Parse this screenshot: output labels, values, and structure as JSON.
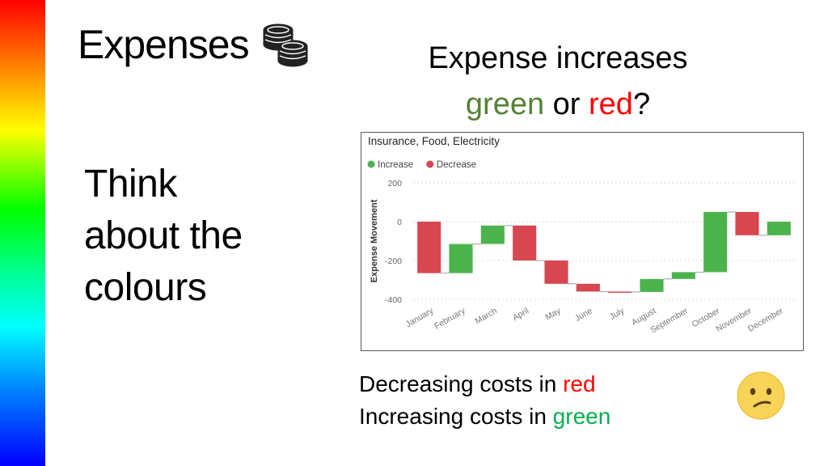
{
  "slide": {
    "title": "Expenses",
    "title_icon": "coins-icon",
    "question_line1": "Expense increases",
    "question_green_word": "green",
    "question_or": " or ",
    "question_red_word": "red",
    "question_mark": "?",
    "think_lines": [
      "Think",
      "about the",
      "colours"
    ],
    "note_line1_prefix": "Decreasing costs in ",
    "note_line1_color_word": "red",
    "note_line2_prefix": "Increasing costs in ",
    "note_line2_color_word": "green",
    "emoji": "confused-face-icon"
  },
  "colors": {
    "increase": "#4CB34C",
    "decrease": "#D6474F",
    "text_green": "#548235",
    "text_red": "#FF0000",
    "note_green": "#00B050"
  },
  "chart_data": {
    "type": "waterfall",
    "title": "Insurance, Food, Electricity",
    "legend": [
      {
        "name": "Increase",
        "color": "#4CB34C"
      },
      {
        "name": "Decrease",
        "color": "#D6474F"
      }
    ],
    "legend_position": "top-left",
    "ylabel": "Expense Movement",
    "xlabel": "",
    "ylim": [
      -420,
      230
    ],
    "yticks": [
      200,
      0,
      -200,
      -400
    ],
    "grid": true,
    "categories": [
      "January",
      "February",
      "March",
      "April",
      "May",
      "June",
      "July",
      "August",
      "September",
      "October",
      "November",
      "December"
    ],
    "bars": [
      {
        "category": "January",
        "start": 0,
        "end": -265,
        "kind": "Decrease"
      },
      {
        "category": "February",
        "start": -265,
        "end": -115,
        "kind": "Increase"
      },
      {
        "category": "March",
        "start": -115,
        "end": -20,
        "kind": "Increase"
      },
      {
        "category": "April",
        "start": -20,
        "end": -200,
        "kind": "Decrease"
      },
      {
        "category": "May",
        "start": -200,
        "end": -320,
        "kind": "Decrease"
      },
      {
        "category": "June",
        "start": -320,
        "end": -360,
        "kind": "Decrease"
      },
      {
        "category": "July",
        "start": -360,
        "end": -362,
        "kind": "Decrease"
      },
      {
        "category": "August",
        "start": -362,
        "end": -295,
        "kind": "Increase"
      },
      {
        "category": "September",
        "start": -295,
        "end": -260,
        "kind": "Increase"
      },
      {
        "category": "October",
        "start": -260,
        "end": 50,
        "kind": "Increase"
      },
      {
        "category": "November",
        "start": 50,
        "end": -70,
        "kind": "Decrease"
      },
      {
        "category": "December",
        "start": -70,
        "end": 0,
        "kind": "Increase"
      }
    ]
  }
}
